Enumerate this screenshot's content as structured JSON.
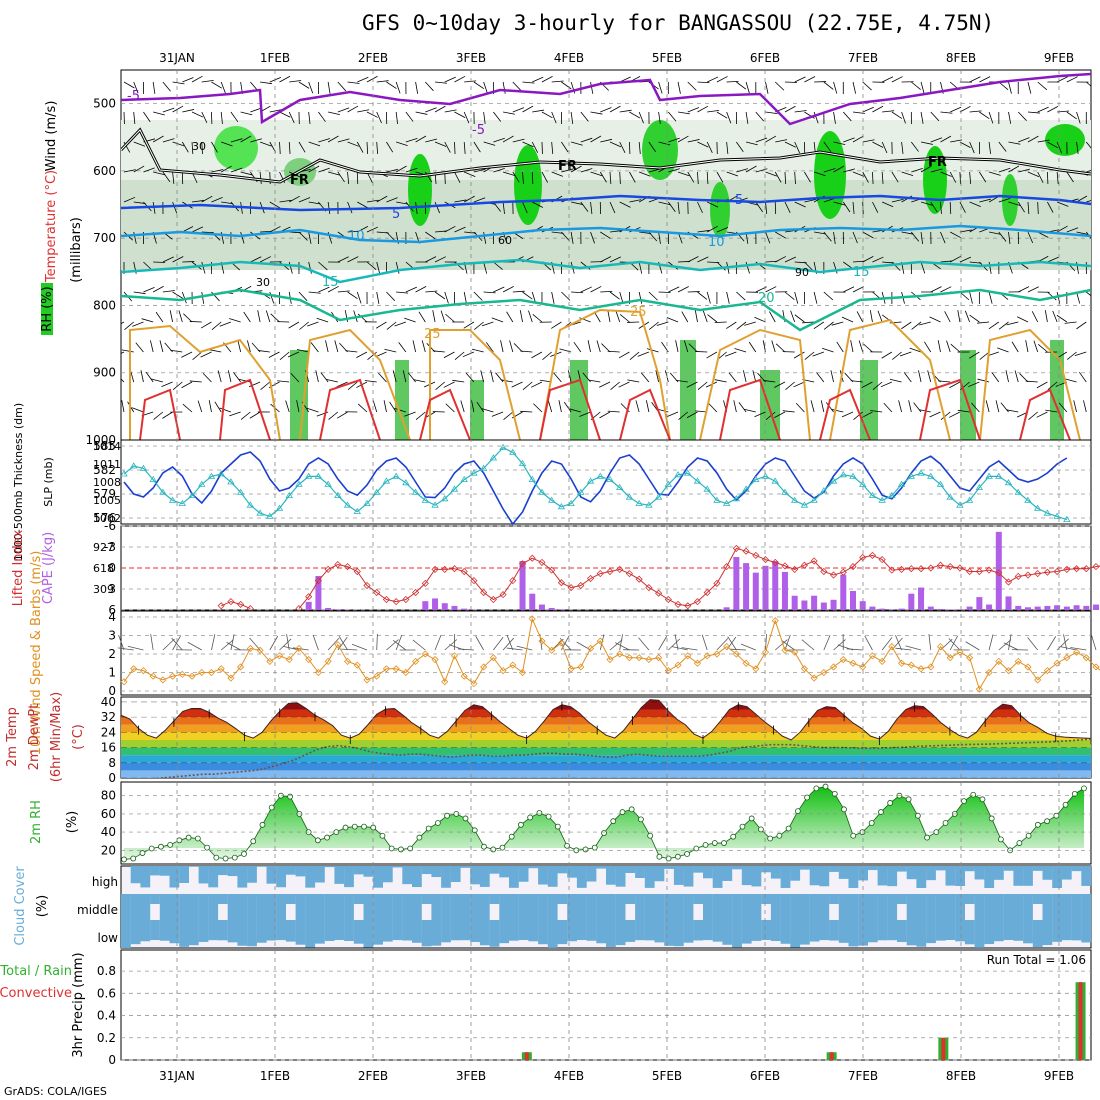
{
  "title": "GFS 0~10day 3-hourly for BANGASSOU (22.75E, 4.75N)",
  "footer": "GrADS: COLA/IGES",
  "dates": [
    "31JAN",
    "1FEB",
    "2FEB",
    "3FEB",
    "4FEB",
    "5FEB",
    "6FEB",
    "7FEB",
    "8FEB",
    "9FEB"
  ],
  "colors": {
    "rh_green": "#22cc22",
    "temp_warm": "#e03030",
    "slp": "#1a3fd0",
    "thickness": "#2ab5c0",
    "lifted": "#d03030",
    "cape": "#b060e8",
    "wind10": "#e09020",
    "cloud": "#6aacd8",
    "precip_total": "#30b030",
    "precip_conv": "#e03030"
  },
  "chart_data": [
    {
      "type": "area",
      "panel": "upper-air",
      "ylabels": [
        "Wind (m/s)",
        "Temperature (°C)",
        "RH (%)",
        "(millibars)"
      ],
      "yticks": [
        500,
        600,
        700,
        800,
        900,
        1000
      ],
      "ylim": [
        1000,
        450
      ],
      "temp_contour_labels": [
        "-5",
        "-5",
        "FR",
        "FR",
        "FR",
        "5",
        "5",
        "10",
        "10",
        "15",
        "15",
        "20",
        "25",
        "25"
      ],
      "rh_contour_labels": [
        "30",
        "30",
        "60",
        "90"
      ]
    },
    {
      "type": "line",
      "panel": "thickness-slp",
      "ylabels": [
        "1000-500mb Thickness (dm)",
        "SLP (mb)"
      ],
      "yticks_left": [
        576,
        579,
        582,
        585
      ],
      "yticks_right": [
        1002,
        1005,
        1008,
        1011,
        1014
      ],
      "series": [
        {
          "name": "SLP",
          "values": [
            1008,
            1006,
            1005.5,
            1007,
            1009.5,
            1010.5,
            1009,
            1006,
            1004.5,
            1006.5,
            1009.5,
            1011,
            1012.5,
            1013,
            1011.5,
            1008.5,
            1006.5,
            1007,
            1008.5,
            1011,
            1012,
            1011,
            1008.5,
            1006.5,
            1005.8,
            1007.5,
            1010,
            1011.5,
            1012,
            1010.5,
            1008,
            1005.5,
            1005.4,
            1007,
            1009.5,
            1011,
            1011.5,
            1009.5,
            1006.5,
            1003.5,
            1001,
            1003,
            1006.5,
            1009.5,
            1011.5,
            1011,
            1008.5,
            1005.5,
            1004.7,
            1006.5,
            1009.5,
            1012,
            1012.5,
            1011,
            1008.5,
            1006,
            1005.8,
            1008,
            1010.5,
            1012,
            1011.5,
            1009.5,
            1006.8,
            1005,
            1006.5,
            1009,
            1011,
            1012,
            1011.5,
            1009,
            1006.5,
            1005.3,
            1006.3,
            1009,
            1011,
            1012,
            1011,
            1008.5,
            1005.8,
            1005.2,
            1007,
            1009.5,
            1011.5,
            1012.3,
            1011,
            1009,
            1007,
            1006.5,
            1008.5,
            1010.5,
            1011.5,
            1010,
            1008.5,
            1008,
            1008.5,
            1009.5,
            1011,
            1012
          ]
        },
        {
          "name": "Thickness",
          "values": [
            581.5,
            582.5,
            582.2,
            580.8,
            579.2,
            578.2,
            577.8,
            578.8,
            580.2,
            581.2,
            581.5,
            580.5,
            579.2,
            577.6,
            576.6,
            576.2,
            577.2,
            578.8,
            580.2,
            581.2,
            581.2,
            580.2,
            578.8,
            577.6,
            576.8,
            577.8,
            579.2,
            580.6,
            581.2,
            580.4,
            579.2,
            578.2,
            577.6,
            578.4,
            579.6,
            580.8,
            581.6,
            582.2,
            583.5,
            584.8,
            584.2,
            582.8,
            580.8,
            579.2,
            578.2,
            577.4,
            577.8,
            579.2,
            580.6,
            581.2,
            580.8,
            579.8,
            578.6,
            577.8,
            577.6,
            578.6,
            580.2,
            581.4,
            581.6,
            580.6,
            579.6,
            578.2,
            577.8,
            578.4,
            579.6,
            580.8,
            581.2,
            580.6,
            579.2,
            578.2,
            577.6,
            578.2,
            579.4,
            580.6,
            581.4,
            581.2,
            580.2,
            578.8,
            578.2,
            578.8,
            580.2,
            581.2,
            581.6,
            581.2,
            580.2,
            578.6,
            577.6,
            578.2,
            579.8,
            581.2,
            581.2,
            580.4,
            579.2,
            578.2,
            577.2,
            576.6,
            576.2,
            575.8
          ]
        }
      ]
    },
    {
      "type": "bar",
      "panel": "lifted-cape",
      "ylabels": [
        "Lifted Index",
        "CAPE (J/kg)"
      ],
      "yticks_left": [
        -6,
        -3,
        0,
        3,
        6
      ],
      "yticks_right": [
        309,
        618,
        927
      ],
      "series": [
        {
          "name": "Lifted Index",
          "values": [
            null,
            null,
            null,
            null,
            null,
            null,
            null,
            null,
            null,
            null,
            5.4,
            4.8,
            5.2,
            5.8,
            null,
            null,
            null,
            null,
            5.8,
            4.1,
            1.8,
            0.2,
            -0.5,
            -0.2,
            0.5,
            2.5,
            3.5,
            4.5,
            4.8,
            4.5,
            3.5,
            2.2,
            0.2,
            0.2,
            0.1,
            0.5,
            1.8,
            3.5,
            4.5,
            3.8,
            1.8,
            -0.6,
            -1.4,
            -0.8,
            0.3,
            2.1,
            2.8,
            2.5,
            1.5,
            0.8,
            0.5,
            0.2,
            0.8,
            1.6,
            2.8,
            3.6,
            4.5,
            5.2,
            5.4,
            4.8,
            3.5,
            2.2,
            -0.2,
            -2.8,
            -2.4,
            -1.8,
            -1.2,
            -0.8,
            -0.3,
            0.2,
            -0.4,
            -1.0,
            0.5,
            1.0,
            0.6,
            -0.2,
            -1.5,
            -1.8,
            -1.2,
            0.3,
            0.2,
            0.1,
            0.1,
            0.0,
            -0.4,
            -0.2,
            0.0,
            0.5,
            0.5,
            0.3,
            0.7,
            2.0,
            1.2,
            1.0,
            0.8,
            0.6,
            0.5,
            0.2,
            0.1,
            0.1,
            -0.2,
            -0.4,
            0.0
          ]
        },
        {
          "name": "CAPE",
          "values": [
            0,
            0,
            0,
            0,
            0,
            0,
            0,
            0,
            0,
            0,
            0,
            0,
            0,
            0,
            0,
            0,
            0,
            0,
            0,
            120,
            500,
            30,
            10,
            5,
            5,
            0,
            0,
            0,
            0,
            0,
            0,
            130,
            170,
            100,
            60,
            20,
            5,
            0,
            0,
            0,
            0,
            720,
            240,
            80,
            30,
            10,
            0,
            0,
            0,
            0,
            0,
            5,
            0,
            0,
            0,
            0,
            0,
            0,
            0,
            0,
            0,
            0,
            40,
            780,
            690,
            550,
            650,
            720,
            560,
            210,
            140,
            210,
            110,
            150,
            520,
            280,
            130,
            50,
            20,
            10,
            20,
            240,
            330,
            50,
            15,
            8,
            10,
            50,
            190,
            80,
            1150,
            200,
            60,
            40,
            50,
            60,
            70,
            50,
            70,
            60,
            80,
            60,
            120,
            90,
            40
          ]
        }
      ]
    },
    {
      "type": "line",
      "panel": "wind10m",
      "ylabels": [
        "10m Wind Speed & Barbs (m/s)"
      ],
      "yticks": [
        0,
        1,
        2,
        3,
        4
      ],
      "series": [
        {
          "name": "10m Wind Speed",
          "values": [
            0.5,
            1.2,
            1.1,
            0.8,
            0.6,
            0.8,
            0.9,
            0.8,
            1.0,
            1.0,
            1.2,
            0.7,
            1.3,
            2.3,
            2.2,
            1.6,
            1.9,
            1.7,
            2.3,
            1.7,
            1.0,
            1.6,
            2.5,
            1.6,
            1.4,
            0.6,
            0.8,
            1.2,
            1.2,
            1.0,
            1.6,
            2.0,
            1.7,
            0.5,
            1.9,
            0.8,
            0.4,
            1.3,
            1.8,
            1.1,
            1.4,
            1.0,
            3.9,
            2.7,
            2.2,
            2.6,
            1.2,
            1.3,
            2.3,
            2.7,
            1.7,
            2.0,
            1.8,
            1.8,
            1.7,
            1.8,
            1.1,
            1.4,
            1.9,
            1.5,
            1.9,
            2.0,
            2.4,
            2.0,
            1.5,
            1.2,
            2.1,
            3.8,
            2.2,
            2.1,
            1.2,
            0.7,
            1.0,
            1.3,
            1.7,
            1.5,
            1.3,
            1.9,
            1.6,
            2.4,
            1.5,
            1.4,
            1.2,
            1.3,
            2.4,
            1.8,
            2.1,
            1.8,
            0.1,
            1.0,
            1.6,
            1.1,
            1.6,
            1.3,
            0.6,
            1.1,
            1.5,
            1.8,
            2.1,
            1.8,
            1.3,
            0.9,
            1.8,
            2.0
          ]
        }
      ]
    },
    {
      "type": "area",
      "panel": "temp-dewpoint",
      "ylabels": [
        "2m Temp",
        "2m DewPt",
        "(6hr Min/Max)",
        "(°C)"
      ],
      "yticks": [
        0,
        8,
        16,
        24,
        32,
        40
      ],
      "series": [
        {
          "name": "2m Temp",
          "values": [
            33,
            31,
            26,
            22.5,
            21,
            25,
            30,
            35,
            36.5,
            36.5,
            34.5,
            31.5,
            29.2,
            26,
            22.5,
            21,
            24,
            30,
            35,
            39.2,
            39.5,
            36.5,
            33,
            30.5,
            27.5,
            22.5,
            21,
            23,
            28,
            33.5,
            36.2,
            36.5,
            33,
            29,
            26,
            22.5,
            21,
            24.5,
            30,
            35.5,
            38.5,
            37.5,
            33.5,
            29.5,
            26,
            22.5,
            21,
            24.5,
            30,
            36,
            38.5,
            37.5,
            34,
            29.5,
            26,
            22.5,
            21,
            25,
            31,
            37,
            41.2,
            40.8,
            35.5,
            31,
            28,
            23,
            21,
            24.5,
            30,
            36,
            38.5,
            37.5,
            33.5,
            29.5,
            26,
            22,
            20,
            24,
            30,
            35.5,
            37.5,
            37,
            33,
            29,
            26,
            22,
            20.5,
            24.5,
            31,
            36,
            38,
            37.5,
            33.5,
            29,
            25.5,
            22.5,
            21,
            24,
            30,
            35.5,
            38.8,
            38,
            33,
            29,
            26.5,
            23.5,
            22,
            21.5,
            21.2,
            21,
            20.8
          ]
        },
        {
          "name": "2m DewPt",
          "values": [
            -2,
            -1.5,
            -1,
            -0.5,
            0,
            0.5,
            1,
            1.5,
            2,
            2,
            2.5,
            3,
            3.5,
            4,
            5,
            6.5,
            8,
            10,
            12.5,
            15,
            16.5,
            17,
            16.5,
            15.5,
            14,
            13,
            12.5,
            12,
            12.5,
            12.5,
            12,
            11.5,
            11,
            11.5,
            12,
            12,
            11.5,
            11.5,
            12,
            12,
            12.5,
            13,
            13,
            12.5,
            12.5,
            12,
            11.5,
            11,
            11,
            12,
            12.5,
            12,
            11.5,
            11.5,
            11.5,
            11.5,
            11.5,
            12,
            13,
            14,
            16,
            16.5,
            17,
            17.5,
            17.5,
            17.5,
            17,
            16.5,
            16,
            16,
            16,
            15.8,
            15.6,
            15.6,
            15.8,
            16,
            16.2,
            16.6,
            16.8,
            17,
            17.2,
            17.4,
            17.6,
            17.7,
            17.8,
            18,
            18.2,
            18.4,
            18.6,
            18.8,
            19,
            19.3,
            19.6,
            20,
            20.5
          ]
        }
      ]
    },
    {
      "type": "area",
      "panel": "rh2m",
      "ylabels": [
        "2m RH",
        "(%)"
      ],
      "yticks": [
        20,
        40,
        60,
        80
      ],
      "series": [
        {
          "name": "2m RH",
          "values": [
            10,
            11,
            17,
            22,
            24,
            26,
            31,
            34,
            33,
            23,
            12,
            11,
            12,
            16,
            30,
            48,
            67,
            80,
            79,
            60,
            40,
            31,
            34,
            40,
            45,
            46,
            46,
            45,
            36,
            22,
            21,
            22,
            34,
            44,
            50,
            58,
            60,
            55,
            42,
            24,
            21,
            23,
            35,
            48,
            56,
            61,
            57,
            46,
            25,
            20,
            21,
            23,
            39,
            52,
            62,
            65,
            54,
            36,
            13,
            11,
            13,
            16,
            22,
            26,
            28,
            28,
            35,
            46,
            55,
            43,
            33,
            36,
            44,
            63,
            78,
            88,
            90,
            82,
            65,
            36,
            40,
            50,
            62,
            72,
            80,
            76,
            58,
            34,
            40,
            50,
            60,
            74,
            81,
            76,
            55,
            32,
            20,
            28,
            36,
            48,
            52,
            58,
            70,
            82,
            88
          ]
        }
      ]
    },
    {
      "type": "area",
      "panel": "cloud-cover",
      "ylabels": [
        "Cloud Cover",
        "(%)"
      ],
      "categories": [
        "high",
        "middle",
        "low"
      ]
    },
    {
      "type": "bar",
      "panel": "precip",
      "ylabels": [
        "Total / Rain",
        "Convective",
        "3hr Precip (mm)"
      ],
      "yticks": [
        0,
        0.2,
        0.4,
        0.6,
        0.8
      ],
      "annotation": "Run Total = 1.06",
      "series": [
        {
          "name": "Total",
          "points": [
            {
              "date_index": 3.57,
              "value": 0.07
            },
            {
              "date_index": 6.68,
              "value": 0.07
            },
            {
              "date_index": 7.82,
              "value": 0.2
            },
            {
              "date_index": 9.22,
              "value": 0.7
            }
          ]
        }
      ]
    }
  ]
}
